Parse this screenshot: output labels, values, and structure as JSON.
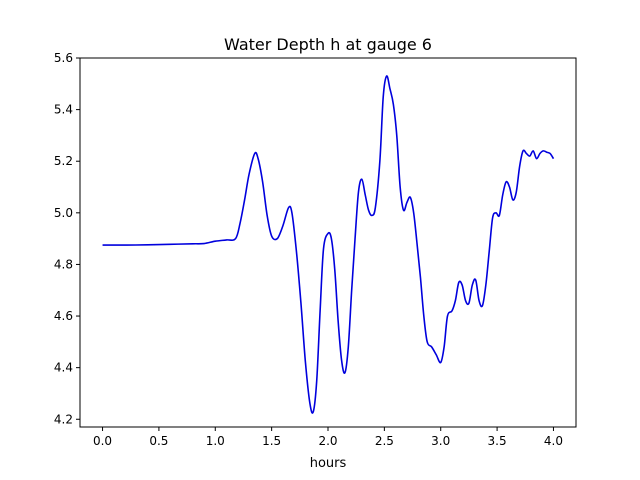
{
  "chart_data": {
    "type": "line",
    "title": "Water Depth h at gauge 6",
    "xlabel": "hours",
    "ylabel": "",
    "xlim": [
      -0.2,
      4.2
    ],
    "ylim": [
      4.17,
      5.6
    ],
    "xticks": [
      "0.0",
      "0.5",
      "1.0",
      "1.5",
      "2.0",
      "2.5",
      "3.0",
      "3.5",
      "4.0"
    ],
    "yticks": [
      "4.2",
      "4.4",
      "4.6",
      "4.8",
      "5.0",
      "5.2",
      "5.4",
      "5.6"
    ],
    "grid": false,
    "colors": {
      "line": "#0000dd"
    },
    "series": [
      {
        "name": "",
        "x": [
          0.0,
          0.2,
          0.4,
          0.6,
          0.8,
          0.9,
          1.0,
          1.1,
          1.18,
          1.22,
          1.26,
          1.3,
          1.35,
          1.38,
          1.42,
          1.46,
          1.5,
          1.55,
          1.6,
          1.65,
          1.68,
          1.72,
          1.76,
          1.8,
          1.84,
          1.87,
          1.9,
          1.93,
          1.96,
          2.0,
          2.03,
          2.06,
          2.09,
          2.12,
          2.15,
          2.18,
          2.21,
          2.24,
          2.27,
          2.3,
          2.33,
          2.36,
          2.39,
          2.42,
          2.46,
          2.49,
          2.52,
          2.55,
          2.58,
          2.61,
          2.64,
          2.67,
          2.7,
          2.73,
          2.76,
          2.79,
          2.82,
          2.85,
          2.88,
          2.92,
          2.96,
          3.0,
          3.03,
          3.06,
          3.1,
          3.13,
          3.16,
          3.19,
          3.22,
          3.25,
          3.28,
          3.31,
          3.34,
          3.37,
          3.4,
          3.43,
          3.46,
          3.49,
          3.52,
          3.55,
          3.58,
          3.61,
          3.64,
          3.67,
          3.7,
          3.73,
          3.76,
          3.79,
          3.82,
          3.85,
          3.88,
          3.91,
          3.94,
          3.97,
          4.0
        ],
        "y": [
          4.875,
          4.875,
          4.876,
          4.878,
          4.88,
          4.881,
          4.89,
          4.895,
          4.9,
          4.96,
          5.05,
          5.15,
          5.23,
          5.21,
          5.12,
          4.99,
          4.91,
          4.9,
          4.95,
          5.02,
          5.0,
          4.85,
          4.65,
          4.42,
          4.26,
          4.23,
          4.35,
          4.62,
          4.86,
          4.92,
          4.9,
          4.78,
          4.58,
          4.43,
          4.38,
          4.48,
          4.7,
          4.9,
          5.08,
          5.13,
          5.07,
          5.01,
          4.99,
          5.02,
          5.2,
          5.45,
          5.53,
          5.48,
          5.42,
          5.3,
          5.1,
          5.01,
          5.04,
          5.06,
          5.0,
          4.88,
          4.75,
          4.6,
          4.5,
          4.48,
          4.45,
          4.42,
          4.48,
          4.6,
          4.62,
          4.66,
          4.73,
          4.72,
          4.66,
          4.65,
          4.72,
          4.74,
          4.66,
          4.64,
          4.72,
          4.85,
          4.98,
          5.0,
          4.99,
          5.07,
          5.12,
          5.1,
          5.05,
          5.08,
          5.18,
          5.24,
          5.23,
          5.22,
          5.24,
          5.21,
          5.23,
          5.24,
          5.235,
          5.23,
          5.21
        ]
      }
    ]
  }
}
